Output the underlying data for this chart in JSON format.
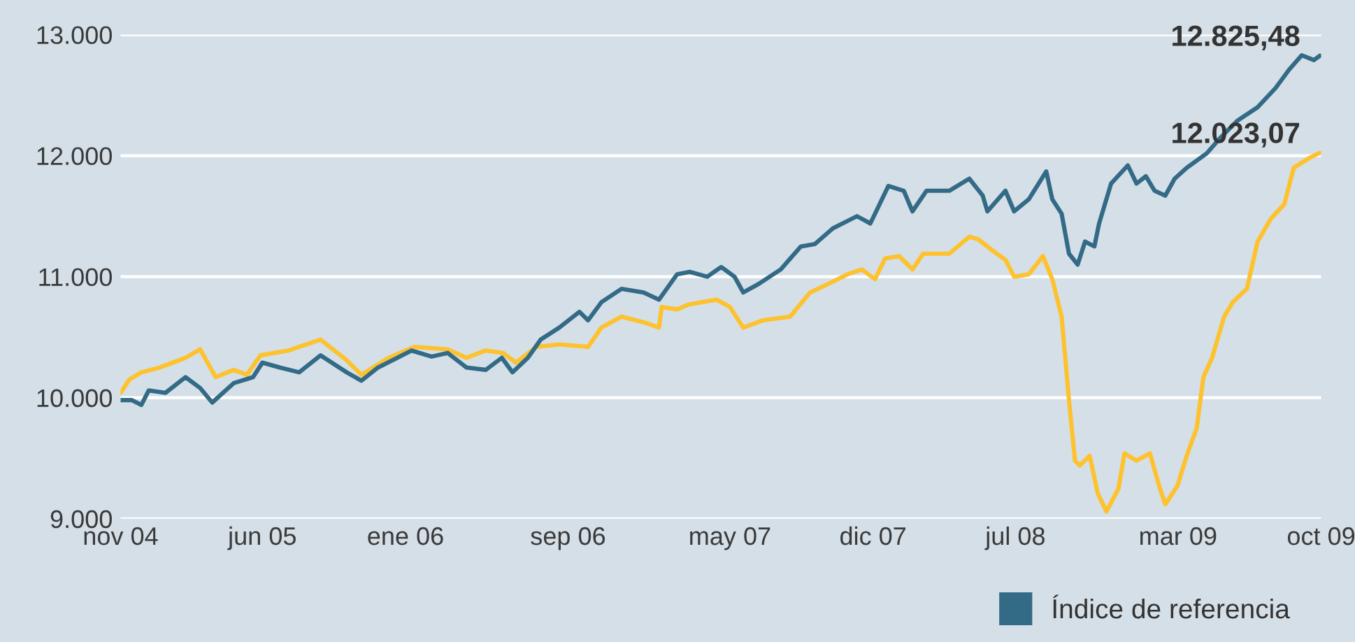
{
  "chart_data": {
    "type": "line",
    "xlim": [
      "2004-11-01",
      "2009-10-01"
    ],
    "xticks": [
      {
        "value": "2004-11-01",
        "label": "nov 04"
      },
      {
        "value": "2005-06-01",
        "label": "jun 05"
      },
      {
        "value": "2006-01-01",
        "label": "ene 06"
      },
      {
        "value": "2006-09-01",
        "label": "sep 06"
      },
      {
        "value": "2007-05-01",
        "label": "may 07"
      },
      {
        "value": "2007-12-01",
        "label": "dic 07"
      },
      {
        "value": "2008-07-01",
        "label": "jul 08"
      },
      {
        "value": "2009-03-01",
        "label": "mar 09"
      },
      {
        "value": "2009-10-01",
        "label": "oct 09"
      }
    ],
    "ylim": [
      9000,
      13000
    ],
    "yticks": [
      {
        "value": 9000,
        "label": "9.000"
      },
      {
        "value": 10000,
        "label": "10.000"
      },
      {
        "value": 11000,
        "label": "11.000"
      },
      {
        "value": 12000,
        "label": "12.000"
      },
      {
        "value": 13000,
        "label": "13.000"
      }
    ],
    "grid": "y",
    "legend": "bottom",
    "marker": "none",
    "line_style": "solid",
    "annotations": [
      {
        "text": "12.825,48",
        "x": "2009-09-29",
        "y": 12825.48
      },
      {
        "text": "12.023,07",
        "x": "2009-09-29",
        "y": 12023.07
      }
    ],
    "series": [
      {
        "color": "#fdc22e",
        "x": [
          "2004-11-01",
          "2004-11-14",
          "2004-12-02",
          "2004-12-30",
          "2005-02-06",
          "2005-02-28",
          "2005-03-23",
          "2005-04-19",
          "2005-05-09",
          "2005-05-29",
          "2005-07-10",
          "2005-08-27",
          "2005-10-05",
          "2005-10-27",
          "2005-12-07",
          "2006-01-14",
          "2006-03-05",
          "2006-04-02",
          "2006-05-01",
          "2006-05-27",
          "2006-06-15",
          "2006-07-16",
          "2006-08-19",
          "2006-10-01",
          "2006-10-21",
          "2006-11-20",
          "2006-12-25",
          "2007-01-15",
          "2007-01-19",
          "2007-02-11",
          "2007-02-28",
          "2007-04-11",
          "2007-05-01",
          "2007-05-21",
          "2007-06-20",
          "2007-07-30",
          "2007-08-29",
          "2007-09-25",
          "2007-10-24",
          "2007-11-14",
          "2007-12-04",
          "2007-12-19",
          "2008-01-09",
          "2008-01-29",
          "2008-02-14",
          "2008-03-24",
          "2008-04-23",
          "2008-05-06",
          "2008-06-03",
          "2008-06-16",
          "2008-06-29",
          "2008-07-21",
          "2008-08-11",
          "2008-08-25",
          "2008-09-08",
          "2008-09-19",
          "2008-09-28",
          "2008-10-05",
          "2008-10-20",
          "2008-11-01",
          "2008-11-14",
          "2008-12-02",
          "2008-12-11",
          "2008-12-29",
          "2009-01-18",
          "2009-02-02",
          "2009-02-10",
          "2009-02-28",
          "2009-03-14",
          "2009-03-29",
          "2009-04-08",
          "2009-04-21",
          "2009-05-09",
          "2009-05-22",
          "2009-06-12",
          "2009-06-28",
          "2009-07-18",
          "2009-08-07",
          "2009-08-21",
          "2009-09-13",
          "2009-09-29"
        ],
        "values": [
          10040,
          10150,
          10210,
          10250,
          10330,
          10400,
          10170,
          10230,
          10190,
          10350,
          10390,
          10480,
          10310,
          10190,
          10330,
          10420,
          10400,
          10330,
          10390,
          10370,
          10290,
          10420,
          10440,
          10420,
          10580,
          10670,
          10620,
          10580,
          10750,
          10730,
          10770,
          10810,
          10750,
          10580,
          10640,
          10670,
          10870,
          10940,
          11020,
          11060,
          10980,
          11150,
          11170,
          11060,
          11190,
          11190,
          11330,
          11310,
          11190,
          11140,
          11000,
          11020,
          11170,
          10980,
          10670,
          9980,
          9480,
          9440,
          9520,
          9210,
          9060,
          9250,
          9540,
          9480,
          9540,
          9250,
          9120,
          9270,
          9520,
          9750,
          10170,
          10330,
          10670,
          10790,
          10900,
          11290,
          11480,
          11600,
          11900,
          11980,
          12023.07
        ]
      },
      {
        "name": "Índice de referencia",
        "color": "#336b87",
        "x": [
          "2004-11-01",
          "2004-11-18",
          "2004-12-02",
          "2004-12-13",
          "2005-01-07",
          "2005-02-06",
          "2005-02-28",
          "2005-03-18",
          "2005-04-19",
          "2005-05-18",
          "2005-06-01",
          "2005-06-27",
          "2005-07-26",
          "2005-08-27",
          "2005-10-05",
          "2005-10-27",
          "2005-11-21",
          "2005-12-20",
          "2006-01-10",
          "2006-02-09",
          "2006-03-05",
          "2006-04-02",
          "2006-05-01",
          "2006-05-25",
          "2006-06-10",
          "2006-07-03",
          "2006-07-22",
          "2006-08-19",
          "2006-09-18",
          "2006-10-01",
          "2006-10-21",
          "2006-11-20",
          "2006-12-23",
          "2007-01-15",
          "2007-02-11",
          "2007-03-02",
          "2007-03-28",
          "2007-04-18",
          "2007-05-08",
          "2007-05-21",
          "2007-06-13",
          "2007-07-16",
          "2007-08-15",
          "2007-09-05",
          "2007-10-02",
          "2007-11-07",
          "2007-11-27",
          "2007-12-24",
          "2008-01-16",
          "2008-01-29",
          "2008-02-19",
          "2008-03-24",
          "2008-04-23",
          "2008-05-13",
          "2008-05-20",
          "2008-06-16",
          "2008-06-29",
          "2008-07-21",
          "2008-08-16",
          "2008-08-25",
          "2008-09-08",
          "2008-09-19",
          "2008-10-02",
          "2008-10-13",
          "2008-10-27",
          "2008-11-03",
          "2008-11-21",
          "2008-12-16",
          "2008-12-29",
          "2009-01-12",
          "2009-01-25",
          "2009-02-10",
          "2009-02-24",
          "2009-03-14",
          "2009-04-13",
          "2009-05-02",
          "2009-05-29",
          "2009-06-28",
          "2009-07-25",
          "2009-08-14",
          "2009-09-02",
          "2009-09-20",
          "2009-09-29"
        ],
        "values": [
          9980,
          9980,
          9940,
          10060,
          10040,
          10170,
          10080,
          9960,
          10120,
          10170,
          10290,
          10250,
          10210,
          10350,
          10210,
          10140,
          10250,
          10330,
          10390,
          10340,
          10370,
          10250,
          10230,
          10330,
          10210,
          10330,
          10480,
          10580,
          10710,
          10640,
          10790,
          10900,
          10870,
          10810,
          11020,
          11040,
          11000,
          11080,
          11000,
          10870,
          10940,
          11060,
          11250,
          11270,
          11400,
          11500,
          11440,
          11750,
          11710,
          11540,
          11710,
          11710,
          11810,
          11670,
          11540,
          11710,
          11540,
          11640,
          11870,
          11640,
          11520,
          11190,
          11100,
          11290,
          11250,
          11440,
          11770,
          11920,
          11770,
          11830,
          11710,
          11670,
          11810,
          11900,
          12020,
          12140,
          12290,
          12400,
          12560,
          12710,
          12830,
          12790,
          12825.48
        ]
      }
    ]
  }
}
